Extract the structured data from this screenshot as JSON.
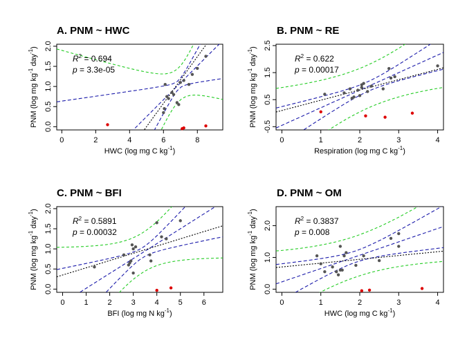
{
  "chart_data": [
    {
      "id": "A",
      "type": "scatter",
      "title": "A.  PNM ~ HWC",
      "xlabel": "HWC (log mg C kg",
      "xlabel_sup": "-1",
      "xlabel_end": ")",
      "ylabel": "PNM (log mg kg",
      "ylabel_sup1": "-1",
      "ylabel_mid": " day",
      "ylabel_sup2": "-1",
      "ylabel_end": ")",
      "r2_label": "R",
      "r2_value": " = 0.694",
      "p_label": "p",
      "p_value": " = 3.3e-05",
      "xlim": [
        -0.3,
        9.5
      ],
      "ylim": [
        -0.08,
        2.05
      ],
      "xticks": [
        0,
        2,
        4,
        6,
        8
      ],
      "yticks": [
        0.0,
        0.5,
        1.0,
        1.5,
        2.0
      ],
      "ytick_labels": [
        "0.0",
        "0.5",
        "1.0",
        "1.5",
        "2.0"
      ],
      "points": [
        [
          6.0,
          0.35
        ],
        [
          6.05,
          0.45
        ],
        [
          6.1,
          1.05
        ],
        [
          6.2,
          0.75
        ],
        [
          6.3,
          0.7
        ],
        [
          6.5,
          0.85
        ],
        [
          6.6,
          0.8
        ],
        [
          6.8,
          0.6
        ],
        [
          6.9,
          0.55
        ],
        [
          7.0,
          1.1
        ],
        [
          7.2,
          1.15
        ],
        [
          7.5,
          1.05
        ],
        [
          7.7,
          1.3
        ],
        [
          8.0,
          1.45
        ],
        [
          8.5,
          1.75
        ]
      ],
      "outliers": [
        [
          2.7,
          0.05
        ],
        [
          7.1,
          -0.05
        ],
        [
          7.2,
          -0.03
        ],
        [
          8.5,
          0.02
        ]
      ],
      "fit": {
        "slope": 0.42,
        "intercept": -1.85
      },
      "ci": {
        "xmean": 6.9,
        "se": 0.06,
        "ss": 0.09
      },
      "pi_se": 0.22,
      "alt": {
        "slope": 0.58,
        "intercept": -2.9
      }
    },
    {
      "id": "B",
      "type": "scatter",
      "title": "B.  PNM ~ RE",
      "xlabel": "Respiration (log mg C kg",
      "xlabel_sup": "-1",
      "xlabel_end": ")",
      "ylabel": "PNM (log mg kg",
      "ylabel_sup1": "-1",
      "ylabel_mid": " day",
      "ylabel_sup2": "-1",
      "ylabel_end": ")",
      "r2_label": "R",
      "r2_value": " = 0.622",
      "p_label": "p",
      "p_value": " = 0.00017",
      "xlim": [
        -0.15,
        4.15
      ],
      "ylim": [
        -0.62,
        2.55
      ],
      "xticks": [
        0,
        1,
        2,
        3,
        4
      ],
      "yticks": [
        -0.5,
        0.5,
        1.5,
        2.5
      ],
      "ytick_labels": [
        "-0.5",
        "0.5",
        "1.5",
        "2.5"
      ],
      "points": [
        [
          1.1,
          0.7
        ],
        [
          1.6,
          0.75
        ],
        [
          1.75,
          0.9
        ],
        [
          1.8,
          0.55
        ],
        [
          1.85,
          0.6
        ],
        [
          1.95,
          0.85
        ],
        [
          2.0,
          0.65
        ],
        [
          2.05,
          0.95
        ],
        [
          2.05,
          1.05
        ],
        [
          2.1,
          1.1
        ],
        [
          2.2,
          0.8
        ],
        [
          2.3,
          1.0
        ],
        [
          2.6,
          0.9
        ],
        [
          2.75,
          1.65
        ],
        [
          2.8,
          1.3
        ],
        [
          2.9,
          1.35
        ],
        [
          4.0,
          1.75
        ]
      ],
      "outliers": [
        [
          1.0,
          0.05
        ],
        [
          2.15,
          -0.1
        ],
        [
          2.65,
          -0.15
        ],
        [
          3.35,
          0.0
        ]
      ],
      "fit": {
        "slope": 0.65,
        "intercept": -0.45
      },
      "ci": {
        "xmean": 2.2,
        "se": 0.1,
        "ss": 0.35
      },
      "pi_se": 0.42,
      "alt": {
        "slope": 0.38,
        "intercept": 0.1
      }
    },
    {
      "id": "C",
      "type": "scatter",
      "title": "C.  PNM ~ BFI",
      "xlabel": "BFI (log mg N kg",
      "xlabel_sup": "-1",
      "xlabel_end": ")",
      "ylabel": "PNM (log mg kg",
      "ylabel_sup1": "-1",
      "ylabel_mid": " day",
      "ylabel_sup2": "-1",
      "ylabel_end": ")",
      "r2_label": "R",
      "r2_value": " = 0.5891",
      "p_label": "p",
      "p_value": " = 0.00032",
      "xlim": [
        -0.25,
        6.8
      ],
      "ylim": [
        -0.08,
        2.05
      ],
      "xticks": [
        0,
        1,
        2,
        3,
        4,
        5,
        6
      ],
      "yticks": [
        0.0,
        0.5,
        1.0,
        1.5,
        2.0
      ],
      "ytick_labels": [
        "0.0",
        "0.5",
        "1.0",
        "1.5",
        "2.0"
      ],
      "points": [
        [
          1.35,
          0.55
        ],
        [
          2.6,
          0.85
        ],
        [
          2.8,
          0.6
        ],
        [
          2.85,
          0.65
        ],
        [
          2.9,
          0.7
        ],
        [
          2.95,
          1.1
        ],
        [
          3.0,
          1.0
        ],
        [
          3.0,
          0.4
        ],
        [
          3.1,
          1.05
        ],
        [
          3.7,
          0.85
        ],
        [
          3.75,
          0.7
        ],
        [
          4.0,
          1.65
        ],
        [
          4.2,
          1.3
        ],
        [
          4.4,
          1.25
        ],
        [
          5.0,
          1.7
        ]
      ],
      "outliers": [
        [
          4.0,
          -0.03
        ],
        [
          4.6,
          0.03
        ]
      ],
      "fit": {
        "slope": 0.37,
        "intercept": -0.35
      },
      "ci": {
        "xmean": 3.4,
        "se": 0.07,
        "ss": 0.25
      },
      "pi_se": 0.26,
      "alt": {
        "slope": 0.18,
        "intercept": 0.35
      }
    },
    {
      "id": "D",
      "type": "scatter",
      "title": "D.  PNM ~ OM",
      "xlabel": "HWC (log mg C kg",
      "xlabel_sup": "-1",
      "xlabel_end": ")",
      "ylabel": "PNM (log mg kg",
      "ylabel_sup1": "-1",
      "ylabel_mid": " day",
      "ylabel_sup2": "-1",
      "ylabel_end": ")",
      "r2_label": "R",
      "r2_value": " = 0.3837",
      "p_label": "p",
      "p_value": " = 0.008",
      "xlim": [
        -0.15,
        4.15
      ],
      "ylim": [
        -0.1,
        2.6
      ],
      "xticks": [
        0,
        1,
        2,
        3,
        4
      ],
      "yticks": [
        0.0,
        1.0,
        2.0
      ],
      "ytick_labels": [
        "0.0",
        "1.0",
        "2.0"
      ],
      "points": [
        [
          0.9,
          1.05
        ],
        [
          1.0,
          0.8
        ],
        [
          1.1,
          0.55
        ],
        [
          1.3,
          0.7
        ],
        [
          1.4,
          0.55
        ],
        [
          1.45,
          0.45
        ],
        [
          1.5,
          0.6
        ],
        [
          1.5,
          1.35
        ],
        [
          1.55,
          0.6
        ],
        [
          1.6,
          1.05
        ],
        [
          1.65,
          1.15
        ],
        [
          1.9,
          0.75
        ],
        [
          2.1,
          1.05
        ],
        [
          2.5,
          0.9
        ],
        [
          2.8,
          1.6
        ],
        [
          3.0,
          1.35
        ],
        [
          3.0,
          1.75
        ]
      ],
      "outliers": [
        [
          2.05,
          -0.05
        ],
        [
          2.25,
          -0.03
        ],
        [
          3.6,
          0.02
        ]
      ],
      "fit": {
        "slope": 0.42,
        "intercept": 0.23
      },
      "ci": {
        "xmean": 1.9,
        "se": 0.1,
        "ss": 0.4
      },
      "pi_se": 0.34,
      "alt": {
        "slope": 0.12,
        "intercept": 0.7
      }
    }
  ]
}
